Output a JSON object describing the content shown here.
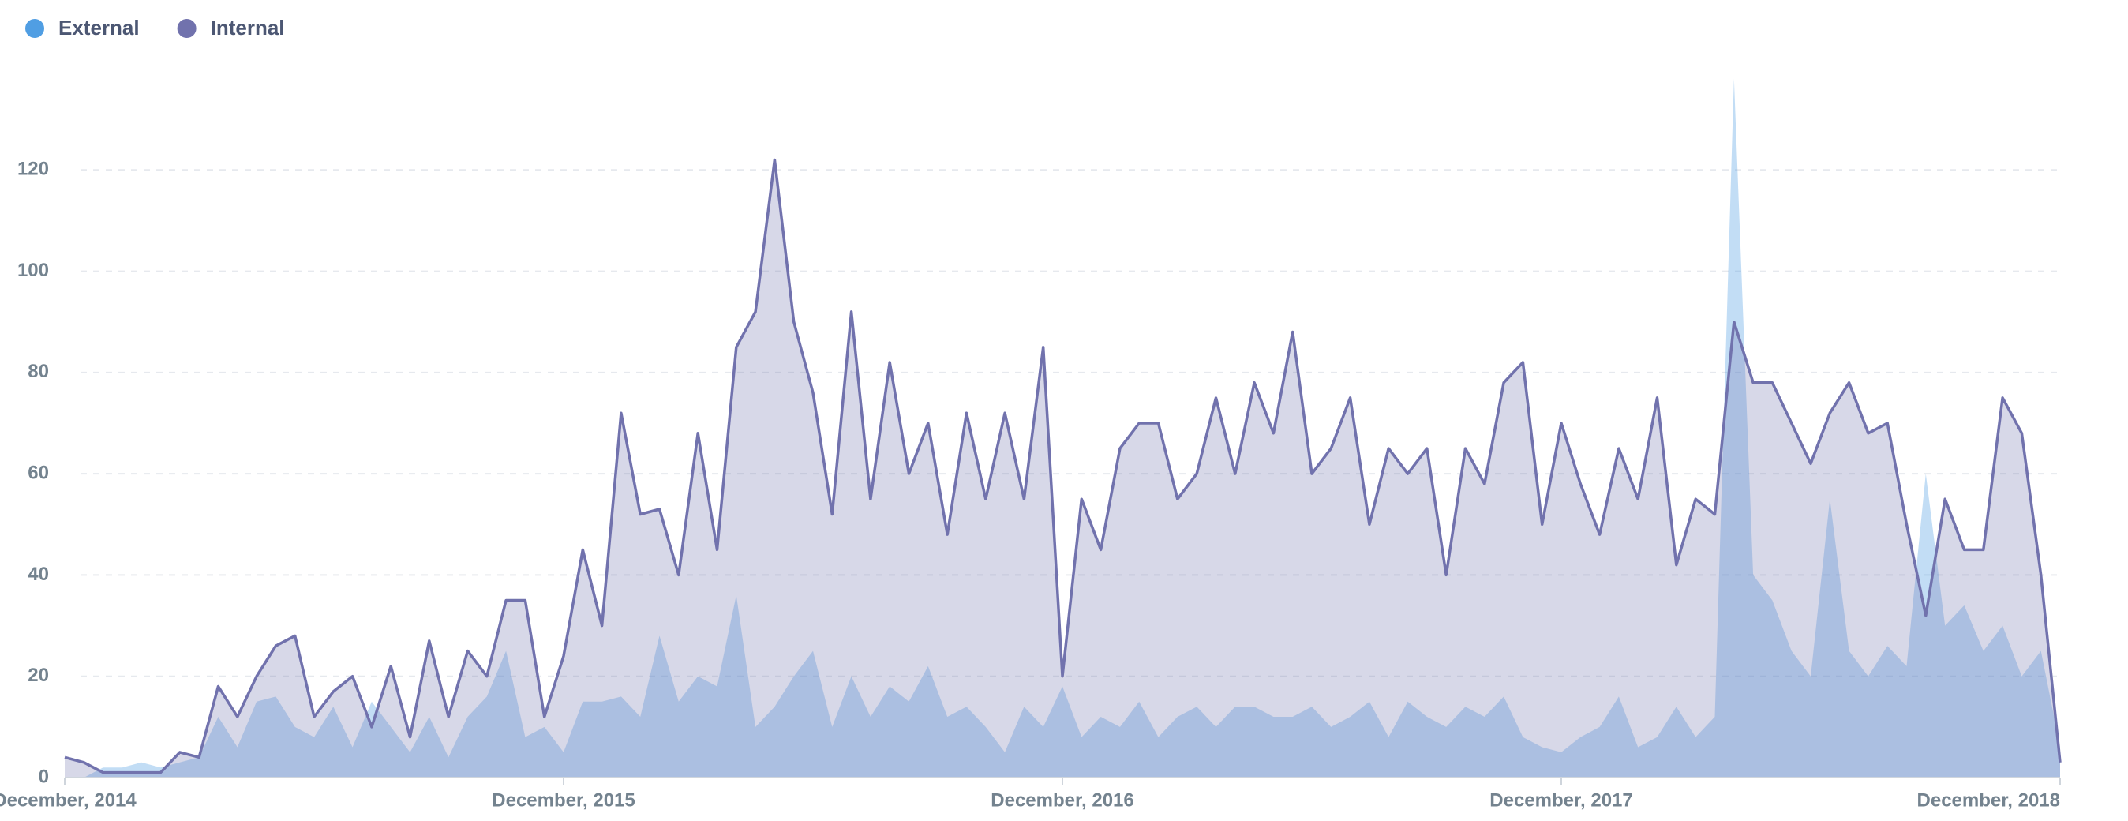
{
  "chart_data": {
    "type": "area",
    "categories": [
      "December, 2014",
      null,
      null,
      null,
      null,
      null,
      null,
      null,
      null,
      null,
      null,
      null,
      null,
      null,
      null,
      null,
      null,
      null,
      null,
      null,
      null,
      null,
      null,
      null,
      null,
      null,
      "December, 2015",
      null,
      null,
      null,
      null,
      null,
      null,
      null,
      null,
      null,
      null,
      null,
      null,
      null,
      null,
      null,
      null,
      null,
      null,
      null,
      null,
      null,
      null,
      null,
      null,
      null,
      "December, 2016",
      null,
      null,
      null,
      null,
      null,
      null,
      null,
      null,
      null,
      null,
      null,
      null,
      null,
      null,
      null,
      null,
      null,
      null,
      null,
      null,
      null,
      null,
      null,
      null,
      null,
      "December, 2017",
      null,
      null,
      null,
      null,
      null,
      null,
      null,
      null,
      null,
      null,
      null,
      null,
      null,
      null,
      null,
      null,
      null,
      null,
      null,
      null,
      null,
      null,
      null,
      null,
      null,
      "December, 2018"
    ],
    "series": [
      {
        "name": "External",
        "color": "#509ee3",
        "values": [
          0,
          0,
          2,
          2,
          3,
          2,
          3,
          4,
          12,
          6,
          15,
          16,
          10,
          8,
          14,
          6,
          15,
          10,
          5,
          12,
          4,
          12,
          16,
          25,
          8,
          10,
          5,
          15,
          15,
          16,
          12,
          28,
          15,
          20,
          18,
          36,
          10,
          14,
          20,
          25,
          10,
          20,
          12,
          18,
          15,
          22,
          12,
          14,
          10,
          5,
          14,
          10,
          18,
          8,
          12,
          10,
          15,
          8,
          12,
          14,
          10,
          14,
          14,
          12,
          12,
          14,
          10,
          12,
          15,
          8,
          15,
          12,
          10,
          14,
          12,
          16,
          8,
          6,
          5,
          8,
          10,
          16,
          6,
          8,
          14,
          8,
          12,
          138,
          40,
          35,
          25,
          20,
          55,
          25,
          20,
          26,
          22,
          60,
          30,
          34,
          25,
          30,
          20,
          25,
          6
        ]
      },
      {
        "name": "Internal",
        "color": "#7172ad",
        "values": [
          4,
          3,
          1,
          1,
          1,
          1,
          5,
          4,
          18,
          12,
          20,
          26,
          28,
          12,
          17,
          20,
          10,
          22,
          8,
          27,
          12,
          25,
          20,
          35,
          35,
          12,
          24,
          45,
          30,
          72,
          52,
          53,
          40,
          68,
          45,
          85,
          92,
          122,
          90,
          76,
          52,
          92,
          55,
          82,
          60,
          70,
          48,
          72,
          55,
          72,
          55,
          85,
          20,
          55,
          45,
          65,
          70,
          70,
          55,
          60,
          75,
          60,
          78,
          68,
          88,
          60,
          65,
          75,
          50,
          65,
          60,
          65,
          40,
          65,
          58,
          78,
          82,
          50,
          70,
          58,
          48,
          65,
          55,
          75,
          42,
          55,
          52,
          90,
          78,
          78,
          70,
          62,
          72,
          78,
          68,
          70,
          50,
          32,
          55,
          45,
          45,
          75,
          68,
          40,
          3
        ]
      }
    ],
    "ylim": [
      0,
      140
    ],
    "yticks": [
      0,
      20,
      40,
      60,
      80,
      100,
      120
    ],
    "grid": true,
    "legend": "top-left"
  }
}
